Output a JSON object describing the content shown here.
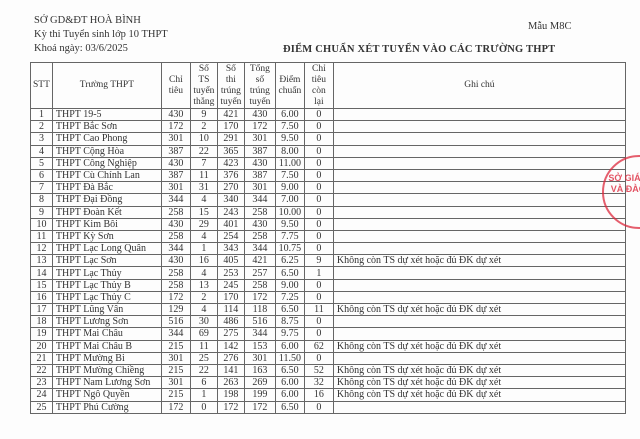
{
  "header": {
    "org": "SỞ GD&ĐT HOÀ BÌNH",
    "exam": "Kỳ thi Tuyển sinh lớp 10 THPT",
    "date": "Khoá ngày: 03/6/2025",
    "form": "Mẫu M8C",
    "title": "ĐIỂM CHUẨN XÉT TUYỂN VÀO CÁC TRƯỜNG THPT"
  },
  "columns": [
    "STT",
    "Trường THPT",
    "Chỉ tiêu",
    "Số TS tuyển thẳng",
    "Số thi trúng tuyển",
    "Tổng số trúng tuyển",
    "Điểm chuẩn",
    "Chỉ tiêu còn lại",
    "Ghi chú"
  ],
  "rows": [
    [
      "1",
      "THPT 19-5",
      "430",
      "9",
      "421",
      "430",
      "6.00",
      "0",
      ""
    ],
    [
      "2",
      "THPT Bắc Sơn",
      "172",
      "2",
      "170",
      "172",
      "7.50",
      "0",
      ""
    ],
    [
      "3",
      "THPT Cao Phong",
      "301",
      "10",
      "291",
      "301",
      "9.50",
      "0",
      ""
    ],
    [
      "4",
      "THPT Cộng Hòa",
      "387",
      "22",
      "365",
      "387",
      "8.00",
      "0",
      ""
    ],
    [
      "5",
      "THPT Công Nghiệp",
      "430",
      "7",
      "423",
      "430",
      "11.00",
      "0",
      ""
    ],
    [
      "6",
      "THPT Cù Chính Lan",
      "387",
      "11",
      "376",
      "387",
      "7.50",
      "0",
      ""
    ],
    [
      "7",
      "THPT Đà Bắc",
      "301",
      "31",
      "270",
      "301",
      "9.00",
      "0",
      ""
    ],
    [
      "8",
      "THPT Đại Đồng",
      "344",
      "4",
      "340",
      "344",
      "7.00",
      "0",
      ""
    ],
    [
      "9",
      "THPT Đoàn Kết",
      "258",
      "15",
      "243",
      "258",
      "10.00",
      "0",
      ""
    ],
    [
      "10",
      "THPT Kim Bôi",
      "430",
      "29",
      "401",
      "430",
      "9.50",
      "0",
      ""
    ],
    [
      "11",
      "THPT Kỳ Sơn",
      "258",
      "4",
      "254",
      "258",
      "7.75",
      "0",
      ""
    ],
    [
      "12",
      "THPT Lạc Long Quân",
      "344",
      "1",
      "343",
      "344",
      "10.75",
      "0",
      ""
    ],
    [
      "13",
      "THPT Lạc Sơn",
      "430",
      "16",
      "405",
      "421",
      "6.25",
      "9",
      "Không còn TS dự xét hoặc đủ ĐK dự xét"
    ],
    [
      "14",
      "THPT Lạc Thủy",
      "258",
      "4",
      "253",
      "257",
      "6.50",
      "1",
      ""
    ],
    [
      "15",
      "THPT Lạc Thủy B",
      "258",
      "13",
      "245",
      "258",
      "9.00",
      "0",
      ""
    ],
    [
      "16",
      "THPT Lạc Thủy C",
      "172",
      "2",
      "170",
      "172",
      "7.25",
      "0",
      ""
    ],
    [
      "17",
      "THPT Lũng Vân",
      "129",
      "4",
      "114",
      "118",
      "6.50",
      "11",
      "Không còn TS dự xét hoặc đủ ĐK dự xét"
    ],
    [
      "18",
      "THPT Lương Sơn",
      "516",
      "30",
      "486",
      "516",
      "8.75",
      "0",
      ""
    ],
    [
      "19",
      "THPT Mai Châu",
      "344",
      "69",
      "275",
      "344",
      "9.75",
      "0",
      ""
    ],
    [
      "20",
      "THPT Mai Châu B",
      "215",
      "11",
      "142",
      "153",
      "6.00",
      "62",
      "Không còn TS dự xét hoặc đủ ĐK dự xét"
    ],
    [
      "21",
      "THPT Mường Bi",
      "301",
      "25",
      "276",
      "301",
      "11.50",
      "0",
      ""
    ],
    [
      "22",
      "THPT Mường Chiềng",
      "215",
      "22",
      "141",
      "163",
      "6.50",
      "52",
      "Không còn TS dự xét hoặc đủ ĐK dự xét"
    ],
    [
      "23",
      "THPT Nam Lương Sơn",
      "301",
      "6",
      "263",
      "269",
      "6.00",
      "32",
      "Không còn TS dự xét hoặc đủ ĐK dự xét"
    ],
    [
      "24",
      "THPT Ngô Quyền",
      "215",
      "1",
      "198",
      "199",
      "6.00",
      "16",
      "Không còn TS dự xét hoặc đủ ĐK dự xét"
    ],
    [
      "25",
      "THPT Phú Cường",
      "172",
      "0",
      "172",
      "172",
      "6.50",
      "0",
      ""
    ]
  ],
  "stamp": {
    "text": "SỞ GIÁO DỤC VÀ ĐÀO TẠO",
    "color": "#dc283c"
  }
}
